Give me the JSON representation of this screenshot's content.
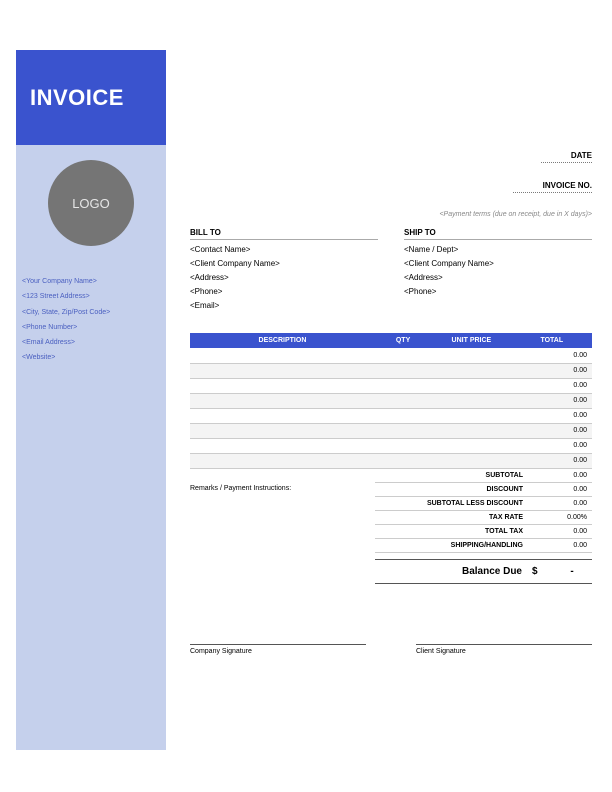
{
  "colors": {
    "brand": "#3a53ce",
    "sidebar_bg": "#c5d0ec",
    "logo_bg": "#757575",
    "grid": "#cccccc",
    "alt_row": "#f4f4f4"
  },
  "header": {
    "title": "INVOICE",
    "logo_text": "LOGO"
  },
  "company": {
    "name": "<Your Company Name>",
    "address": "<123 Street Address>",
    "city": "<City, State, Zip/Post Code>",
    "phone": "<Phone Number>",
    "email": "<Email Address>",
    "website": "<Website>"
  },
  "meta": {
    "date_label": "DATE",
    "invoice_no_label": "INVOICE NO.",
    "payment_terms": "<Payment terms (due on receipt, due in X days)>"
  },
  "bill_to": {
    "title": "BILL TO",
    "contact": "<Contact Name>",
    "client": "<Client Company Name>",
    "address": "<Address>",
    "phone": "<Phone>",
    "email": "<Email>"
  },
  "ship_to": {
    "title": "SHIP TO",
    "name": "<Name / Dept>",
    "client": "<Client Company Name>",
    "address": "<Address>",
    "phone": "<Phone>"
  },
  "table": {
    "headers": {
      "description": "DESCRIPTION",
      "qty": "QTY",
      "unit_price": "UNIT PRICE",
      "total": "TOTAL"
    },
    "rows": [
      {
        "total": "0.00"
      },
      {
        "total": "0.00"
      },
      {
        "total": "0.00"
      },
      {
        "total": "0.00"
      },
      {
        "total": "0.00"
      },
      {
        "total": "0.00"
      },
      {
        "total": "0.00"
      },
      {
        "total": "0.00"
      }
    ]
  },
  "remarks_label": "Remarks / Payment Instructions:",
  "totals": {
    "subtotal_label": "SUBTOTAL",
    "subtotal": "0.00",
    "discount_label": "DISCOUNT",
    "discount": "0.00",
    "less_label": "SUBTOTAL LESS DISCOUNT",
    "less": "0.00",
    "tax_rate_label": "TAX RATE",
    "tax_rate": "0.00%",
    "total_tax_label": "TOTAL TAX",
    "total_tax": "0.00",
    "shipping_label": "SHIPPING/HANDLING",
    "shipping": "0.00",
    "balance_label": "Balance Due",
    "currency": "$",
    "balance": "-"
  },
  "signatures": {
    "company": "Company Signature",
    "client": "Client Signature"
  }
}
